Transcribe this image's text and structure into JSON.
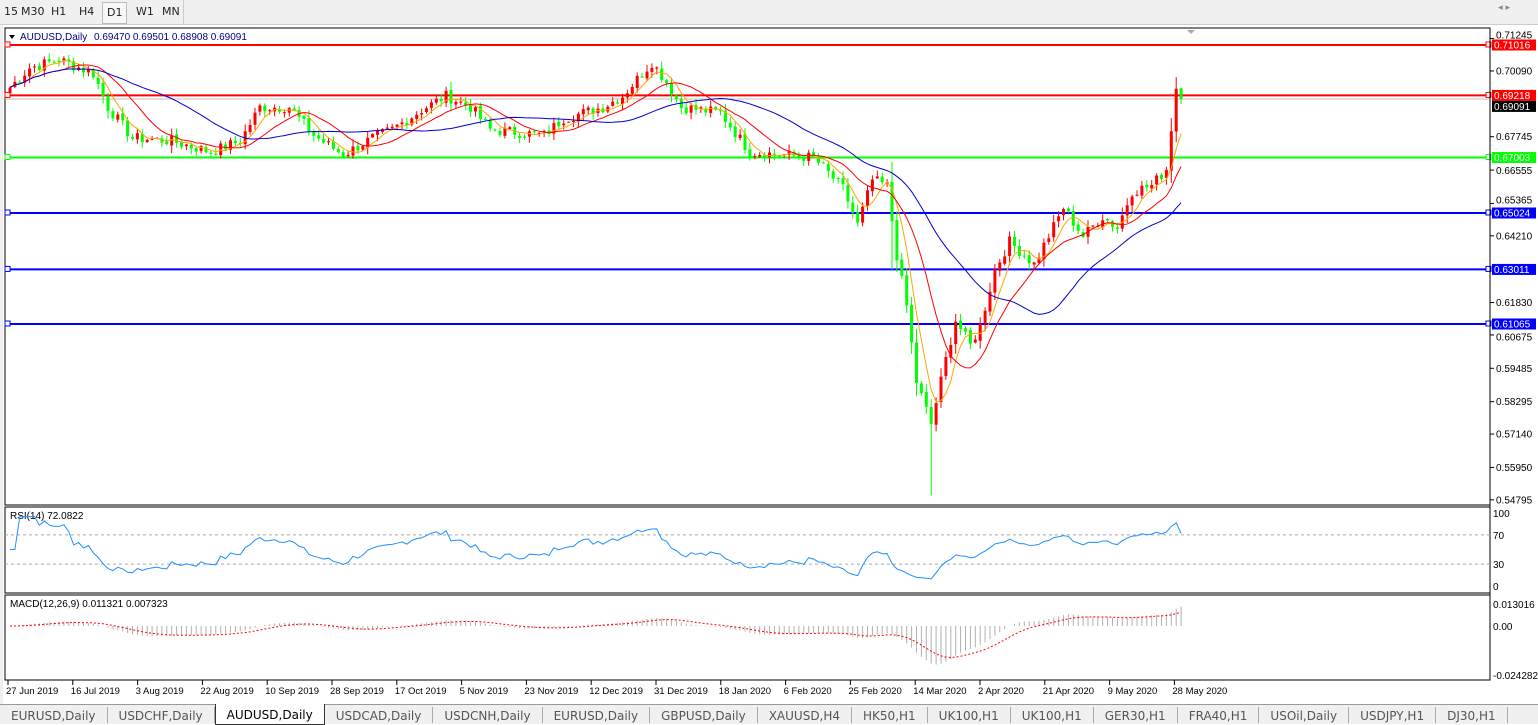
{
  "timeframes": [
    "15",
    "M30",
    "H1",
    "H4",
    "D1",
    "W1",
    "MN"
  ],
  "selected_timeframe": "D1",
  "chart": {
    "header": "AUDUSD,Daily",
    "ohlc": "0.69470 0.69501 0.68908 0.69091",
    "rsi_label": "RSI(14) 72.0822",
    "macd_label": "MACD(12,26,9) 0.011321 0.007323"
  },
  "chart_data": {
    "type": "candlestick",
    "symbol": "AUDUSD",
    "timeframe": "Daily",
    "last": {
      "open": 0.6947,
      "high": 0.69501,
      "low": 0.68908,
      "close": 0.69091
    },
    "colors": {
      "bull": "#ff0000",
      "bear": "#00ff00",
      "ma_fast": "#ffa500",
      "ma_mid": "#ff0000",
      "ma_slow": "#0000cc"
    },
    "close_keypoints_by_bar": [
      [
        0,
        0.695
      ],
      [
        4,
        0.702
      ],
      [
        10,
        0.705
      ],
      [
        17,
        0.7
      ],
      [
        20,
        0.688
      ],
      [
        25,
        0.677
      ],
      [
        33,
        0.676
      ],
      [
        41,
        0.672
      ],
      [
        47,
        0.676
      ],
      [
        51,
        0.688
      ],
      [
        57,
        0.688
      ],
      [
        62,
        0.678
      ],
      [
        68,
        0.671
      ],
      [
        74,
        0.677
      ],
      [
        78,
        0.68
      ],
      [
        84,
        0.687
      ],
      [
        89,
        0.692
      ],
      [
        94,
        0.688
      ],
      [
        98,
        0.68
      ],
      [
        109,
        0.678
      ],
      [
        113,
        0.684
      ],
      [
        121,
        0.688
      ],
      [
        125,
        0.692
      ],
      [
        131,
        0.704
      ],
      [
        134,
        0.697
      ],
      [
        137,
        0.688
      ],
      [
        145,
        0.686
      ],
      [
        151,
        0.672
      ],
      [
        158,
        0.671
      ],
      [
        164,
        0.67
      ],
      [
        170,
        0.659
      ],
      [
        173,
        0.646
      ],
      [
        176,
        0.662
      ],
      [
        179,
        0.66
      ],
      [
        181,
        0.635
      ],
      [
        183,
        0.617
      ],
      [
        185,
        0.59
      ],
      [
        188,
        0.575
      ],
      [
        191,
        0.598
      ],
      [
        193,
        0.612
      ],
      [
        196,
        0.603
      ],
      [
        198,
        0.61
      ],
      [
        201,
        0.63
      ],
      [
        204,
        0.64
      ],
      [
        209,
        0.632
      ],
      [
        215,
        0.652
      ],
      [
        219,
        0.642
      ],
      [
        223,
        0.649
      ],
      [
        226,
        0.645
      ],
      [
        229,
        0.658
      ],
      [
        233,
        0.66
      ],
      [
        236,
        0.666
      ],
      [
        238,
        0.695
      ],
      [
        239,
        0.69091
      ]
    ],
    "price_axis": {
      "range": [
        0.54795,
        0.71245
      ],
      "ticks": [
        "0.71245",
        "0.70090",
        "0.67745",
        "0.66555",
        "0.65365",
        "0.64210",
        "0.61830",
        "0.60675",
        "0.59485",
        "0.58295",
        "0.57140",
        "0.55950",
        "0.54795"
      ],
      "current_price": "0.69091"
    },
    "x_ticks": [
      "27 Jun 2019",
      "16 Jul 2019",
      "3 Aug 2019",
      "22 Aug 2019",
      "10 Sep 2019",
      "28 Sep 2019",
      "17 Oct 2019",
      "5 Nov 2019",
      "23 Nov 2019",
      "12 Dec 2019",
      "31 Dec 2019",
      "18 Jan 2020",
      "6 Feb 2020",
      "25 Feb 2020",
      "14 Mar 2020",
      "2 Apr 2020",
      "21 Apr 2020",
      "9 May 2020",
      "28 May 2020"
    ],
    "horizontal_lines": [
      {
        "price": "0.71016",
        "color": "#ff0000"
      },
      {
        "price": "0.69218",
        "color": "#ff0000"
      },
      {
        "price": "0.67003",
        "color": "#00ff00"
      },
      {
        "price": "0.65024",
        "color": "#0000ff"
      },
      {
        "price": "0.63011",
        "color": "#0000ff"
      },
      {
        "price": "0.61065",
        "color": "#0000ff"
      }
    ],
    "rsi": {
      "period": 14,
      "value": 72.0822,
      "levels": [
        70,
        30
      ],
      "ticks": [
        "100",
        "70",
        "30",
        "0"
      ],
      "color": "#1e90ff"
    },
    "macd": {
      "params": "12,26,9",
      "main": 0.011321,
      "signal": 0.007323,
      "ticks": [
        "0.013016",
        "0.00",
        "-0.024282"
      ],
      "range": [
        -0.024282,
        0.013016
      ]
    }
  },
  "tabs": [
    "EURUSD,Daily",
    "USDCHF,Daily",
    "AUDUSD,Daily",
    "USDCAD,Daily",
    "USDCNH,Daily",
    "EURUSD,Daily",
    "GBPUSD,Daily",
    "XAUUSD,H4",
    "HK50,H1",
    "UK100,H1",
    "UK100,H1",
    "GER30,H1",
    "FRA40,H1",
    "USOil,Daily",
    "USDJPY,H1",
    "DJ30,H1"
  ],
  "active_tab": "AUDUSD,Daily",
  "tab_scroll": "◂ ▸"
}
